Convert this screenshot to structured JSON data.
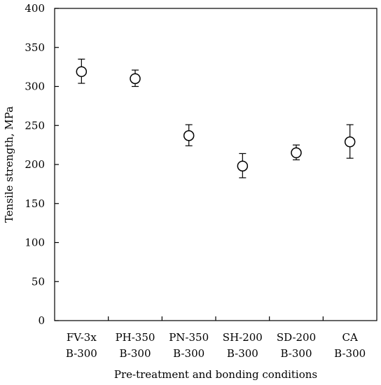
{
  "chart_data": {
    "type": "scatter",
    "title": "",
    "xlabel": "Pre-treatment and bonding conditions",
    "ylabel": "Tensile strength, MPa",
    "ylim": [
      0,
      400
    ],
    "yticks": [
      0,
      50,
      100,
      150,
      200,
      250,
      300,
      350,
      400
    ],
    "categories": [
      [
        "FV-3x",
        "B-300"
      ],
      [
        "PH-350",
        "B-300"
      ],
      [
        "PN-350",
        "B-300"
      ],
      [
        "SH-200",
        "B-300"
      ],
      [
        "SD-200",
        "B-300"
      ],
      [
        "CA",
        "B-300"
      ]
    ],
    "series": [
      {
        "values": [
          319,
          310,
          237,
          198,
          215,
          229
        ],
        "err_upper": [
          16,
          11,
          14,
          16,
          10,
          22
        ],
        "err_lower": [
          15,
          10,
          13,
          15,
          9,
          21
        ],
        "marker": "open-circle"
      }
    ],
    "grid": false,
    "legend": "none"
  }
}
